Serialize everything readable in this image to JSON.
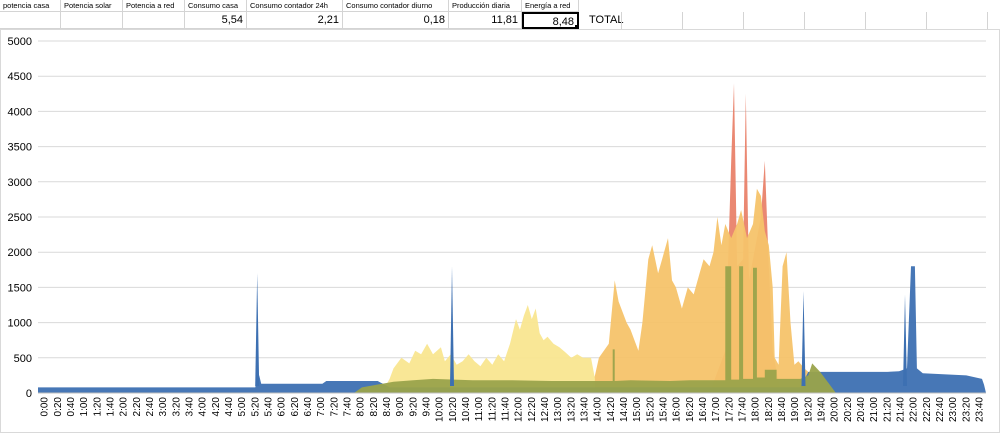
{
  "sheet": {
    "headers": [
      "potencia casa",
      "Potencia solar",
      "Potencia a red",
      "Consumo casa",
      "Consumo contador 24h",
      "Consumo contador diurno",
      "Producción diaria",
      "Energía a red"
    ],
    "values": [
      "",
      "",
      "",
      "5,54",
      "2,21",
      "0,18",
      "11,81",
      "8,48"
    ],
    "total_label": "TOTAL"
  },
  "chart_data": {
    "type": "area",
    "title": "",
    "xlabel": "",
    "ylabel": "",
    "ylim": [
      0,
      5000
    ],
    "yticks": [
      "5000",
      "4500",
      "4000",
      "3500",
      "3000",
      "2500",
      "2000",
      "1500",
      "1000",
      "500",
      "0"
    ],
    "grid": true,
    "legend": "none",
    "x_tick_labels": [
      "0:00",
      "0:20",
      "0:40",
      "1:00",
      "1:20",
      "1:40",
      "2:00",
      "2:20",
      "2:40",
      "3:00",
      "3:20",
      "3:40",
      "4:00",
      "4:20",
      "4:40",
      "5:00",
      "5:20",
      "5:40",
      "6:00",
      "6:20",
      "6:40",
      "7:00",
      "7:20",
      "7:40",
      "8:00",
      "8:20",
      "8:40",
      "9:00",
      "9:20",
      "9:40",
      "10:00",
      "10:20",
      "10:40",
      "11:00",
      "11:20",
      "11:40",
      "12:00",
      "12:20",
      "12:40",
      "13:00",
      "13:20",
      "13:40",
      "14:00",
      "14:20",
      "14:40",
      "15:00",
      "15:20",
      "15:40",
      "16:00",
      "16:20",
      "16:40",
      "17:00",
      "17:20",
      "17:40",
      "18:00",
      "18:20",
      "18:40",
      "19:00",
      "19:20",
      "19:40",
      "20:00",
      "20:20",
      "20:40",
      "21:00",
      "21:20",
      "21:40",
      "22:00",
      "22:20",
      "22:40",
      "23:00",
      "23:20",
      "23:40"
    ],
    "x_hours_range": [
      0,
      24
    ],
    "series": [
      {
        "color": "#e9826a",
        "points": [
          [
            17.0,
            0
          ],
          [
            17.4,
            600
          ],
          [
            17.55,
            3300
          ],
          [
            17.62,
            4400
          ],
          [
            17.7,
            1800
          ],
          [
            17.85,
            1900
          ],
          [
            17.92,
            4250
          ],
          [
            18.0,
            1600
          ],
          [
            18.3,
            2500
          ],
          [
            18.4,
            3300
          ],
          [
            18.5,
            1800
          ],
          [
            18.6,
            600
          ],
          [
            18.8,
            0
          ]
        ]
      },
      {
        "color": "#f6c36a",
        "points": [
          [
            14.0,
            0
          ],
          [
            14.2,
            500
          ],
          [
            14.45,
            700
          ],
          [
            14.6,
            1600
          ],
          [
            14.7,
            1300
          ],
          [
            14.9,
            1000
          ],
          [
            15.0,
            900
          ],
          [
            15.2,
            600
          ],
          [
            15.3,
            1000
          ],
          [
            15.45,
            1900
          ],
          [
            15.55,
            2100
          ],
          [
            15.7,
            1700
          ],
          [
            15.8,
            1900
          ],
          [
            15.95,
            2200
          ],
          [
            16.05,
            1600
          ],
          [
            16.15,
            1500
          ],
          [
            16.3,
            1200
          ],
          [
            16.45,
            1500
          ],
          [
            16.6,
            1400
          ],
          [
            16.75,
            1700
          ],
          [
            16.85,
            1900
          ],
          [
            17.0,
            1800
          ],
          [
            17.1,
            2000
          ],
          [
            17.2,
            2500
          ],
          [
            17.3,
            2100
          ],
          [
            17.4,
            2400
          ],
          [
            17.55,
            2200
          ],
          [
            17.7,
            2400
          ],
          [
            17.8,
            2600
          ],
          [
            17.95,
            2200
          ],
          [
            18.1,
            2400
          ],
          [
            18.2,
            2900
          ],
          [
            18.3,
            2800
          ],
          [
            18.4,
            2300
          ],
          [
            18.5,
            2100
          ],
          [
            18.6,
            1500
          ],
          [
            18.65,
            500
          ],
          [
            18.75,
            400
          ],
          [
            18.85,
            1800
          ],
          [
            18.95,
            2000
          ],
          [
            19.05,
            1000
          ],
          [
            19.15,
            400
          ],
          [
            19.25,
            450
          ],
          [
            19.4,
            350
          ],
          [
            19.5,
            300
          ],
          [
            19.7,
            0
          ]
        ]
      },
      {
        "color": "#f9e690",
        "points": [
          [
            8.7,
            0
          ],
          [
            8.9,
            200
          ],
          [
            9.0,
            350
          ],
          [
            9.2,
            500
          ],
          [
            9.4,
            420
          ],
          [
            9.55,
            600
          ],
          [
            9.7,
            550
          ],
          [
            9.85,
            700
          ],
          [
            10.0,
            550
          ],
          [
            10.2,
            650
          ],
          [
            10.3,
            450
          ],
          [
            10.45,
            550
          ],
          [
            10.6,
            400
          ],
          [
            10.75,
            450
          ],
          [
            10.9,
            550
          ],
          [
            11.05,
            450
          ],
          [
            11.2,
            380
          ],
          [
            11.35,
            500
          ],
          [
            11.5,
            400
          ],
          [
            11.65,
            550
          ],
          [
            11.8,
            450
          ],
          [
            11.95,
            700
          ],
          [
            12.1,
            1050
          ],
          [
            12.2,
            900
          ],
          [
            12.3,
            1100
          ],
          [
            12.4,
            1250
          ],
          [
            12.5,
            1050
          ],
          [
            12.6,
            1200
          ],
          [
            12.7,
            850
          ],
          [
            12.8,
            750
          ],
          [
            12.9,
            800
          ],
          [
            13.05,
            700
          ],
          [
            13.2,
            650
          ],
          [
            13.35,
            580
          ],
          [
            13.5,
            500
          ],
          [
            13.65,
            550
          ],
          [
            13.8,
            500
          ],
          [
            14.0,
            500
          ],
          [
            14.1,
            200
          ]
        ]
      },
      {
        "color": "#3d70b2",
        "points": [
          [
            0,
            0
          ],
          [
            0,
            80
          ],
          [
            5.5,
            80
          ],
          [
            5.55,
            250
          ],
          [
            5.6,
            250
          ],
          [
            5.65,
            130
          ],
          [
            7.2,
            130
          ],
          [
            7.3,
            170
          ],
          [
            8.6,
            170
          ],
          [
            8.9,
            80
          ],
          [
            19.3,
            80
          ],
          [
            19.5,
            300
          ],
          [
            21.5,
            300
          ],
          [
            21.8,
            310
          ],
          [
            22.0,
            350
          ],
          [
            22.1,
            1800
          ],
          [
            22.2,
            1800
          ],
          [
            22.25,
            350
          ],
          [
            22.4,
            280
          ],
          [
            23.5,
            250
          ],
          [
            23.9,
            200
          ],
          [
            23.95,
            120
          ],
          [
            24.0,
            0
          ]
        ]
      },
      {
        "color": "#9aa34b",
        "points": [
          [
            8.0,
            0
          ],
          [
            8.2,
            80
          ],
          [
            9.0,
            160
          ],
          [
            9.5,
            180
          ],
          [
            10.0,
            200
          ],
          [
            11.0,
            180
          ],
          [
            12.0,
            180
          ],
          [
            13.0,
            170
          ],
          [
            14.0,
            170
          ],
          [
            14.55,
            170
          ],
          [
            14.55,
            620
          ],
          [
            14.6,
            620
          ],
          [
            14.6,
            170
          ],
          [
            15.0,
            180
          ],
          [
            16.0,
            170
          ],
          [
            16.5,
            180
          ],
          [
            17.0,
            180
          ],
          [
            17.4,
            180
          ],
          [
            17.4,
            1800
          ],
          [
            17.55,
            1800
          ],
          [
            17.55,
            190
          ],
          [
            17.75,
            190
          ],
          [
            17.75,
            1800
          ],
          [
            17.85,
            1800
          ],
          [
            17.85,
            200
          ],
          [
            18.1,
            200
          ],
          [
            18.1,
            1780
          ],
          [
            18.2,
            1780
          ],
          [
            18.2,
            220
          ],
          [
            18.4,
            220
          ],
          [
            18.4,
            330
          ],
          [
            18.7,
            330
          ],
          [
            18.7,
            200
          ],
          [
            19.3,
            200
          ],
          [
            19.5,
            250
          ],
          [
            19.6,
            420
          ],
          [
            19.8,
            300
          ],
          [
            20.0,
            150
          ],
          [
            20.2,
            0
          ]
        ]
      }
    ],
    "spikes": [
      {
        "series": "blue",
        "x": 5.55,
        "y": 1700
      },
      {
        "series": "blue",
        "x": 10.48,
        "y": 1800
      },
      {
        "series": "blue",
        "x": 19.38,
        "y": 1450
      },
      {
        "series": "blue",
        "x": 21.95,
        "y": 1400
      }
    ]
  }
}
